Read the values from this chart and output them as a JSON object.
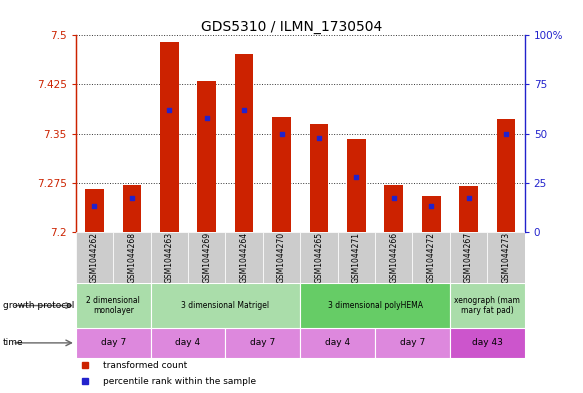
{
  "title": "GDS5310 / ILMN_1730504",
  "samples": [
    "GSM1044262",
    "GSM1044268",
    "GSM1044263",
    "GSM1044269",
    "GSM1044264",
    "GSM1044270",
    "GSM1044265",
    "GSM1044271",
    "GSM1044266",
    "GSM1044272",
    "GSM1044267",
    "GSM1044273"
  ],
  "transformed_counts": [
    7.265,
    7.272,
    7.49,
    7.43,
    7.472,
    7.375,
    7.365,
    7.342,
    7.272,
    7.255,
    7.27,
    7.373
  ],
  "percentile_ranks": [
    13,
    17,
    62,
    58,
    62,
    50,
    48,
    28,
    17,
    13,
    17,
    50
  ],
  "y_min": 7.2,
  "y_max": 7.5,
  "y_ticks": [
    7.2,
    7.275,
    7.35,
    7.425,
    7.5
  ],
  "y_tick_labels": [
    "7.2",
    "7.275",
    "7.35",
    "7.425",
    "7.5"
  ],
  "right_y_ticks": [
    0,
    25,
    50,
    75,
    100
  ],
  "right_y_tick_labels": [
    "0",
    "25",
    "50",
    "75",
    "100%"
  ],
  "bar_color": "#cc2200",
  "dot_color": "#2222cc",
  "dot_size": 12,
  "growth_protocol_groups": [
    {
      "label": "2 dimensional\nmonolayer",
      "start": 0,
      "end": 2,
      "color": "#aaddaa"
    },
    {
      "label": "3 dimensional Matrigel",
      "start": 2,
      "end": 6,
      "color": "#aaddaa"
    },
    {
      "label": "3 dimensional polyHEMA",
      "start": 6,
      "end": 10,
      "color": "#66cc66"
    },
    {
      "label": "xenograph (mam\nmary fat pad)",
      "start": 10,
      "end": 12,
      "color": "#aaddaa"
    }
  ],
  "time_groups": [
    {
      "label": "day 7",
      "start": 0,
      "end": 2,
      "color": "#dd88dd"
    },
    {
      "label": "day 4",
      "start": 2,
      "end": 4,
      "color": "#dd88dd"
    },
    {
      "label": "day 7",
      "start": 4,
      "end": 6,
      "color": "#dd88dd"
    },
    {
      "label": "day 4",
      "start": 6,
      "end": 8,
      "color": "#dd88dd"
    },
    {
      "label": "day 7",
      "start": 8,
      "end": 10,
      "color": "#dd88dd"
    },
    {
      "label": "day 43",
      "start": 10,
      "end": 12,
      "color": "#cc55cc"
    }
  ],
  "legend_items": [
    {
      "label": "transformed count",
      "color": "#cc2200"
    },
    {
      "label": "percentile rank within the sample",
      "color": "#2222cc"
    }
  ],
  "sample_bg_color": "#cccccc",
  "left_axis_color": "#cc2200",
  "right_axis_color": "#2222cc",
  "grid_color": "#333333"
}
